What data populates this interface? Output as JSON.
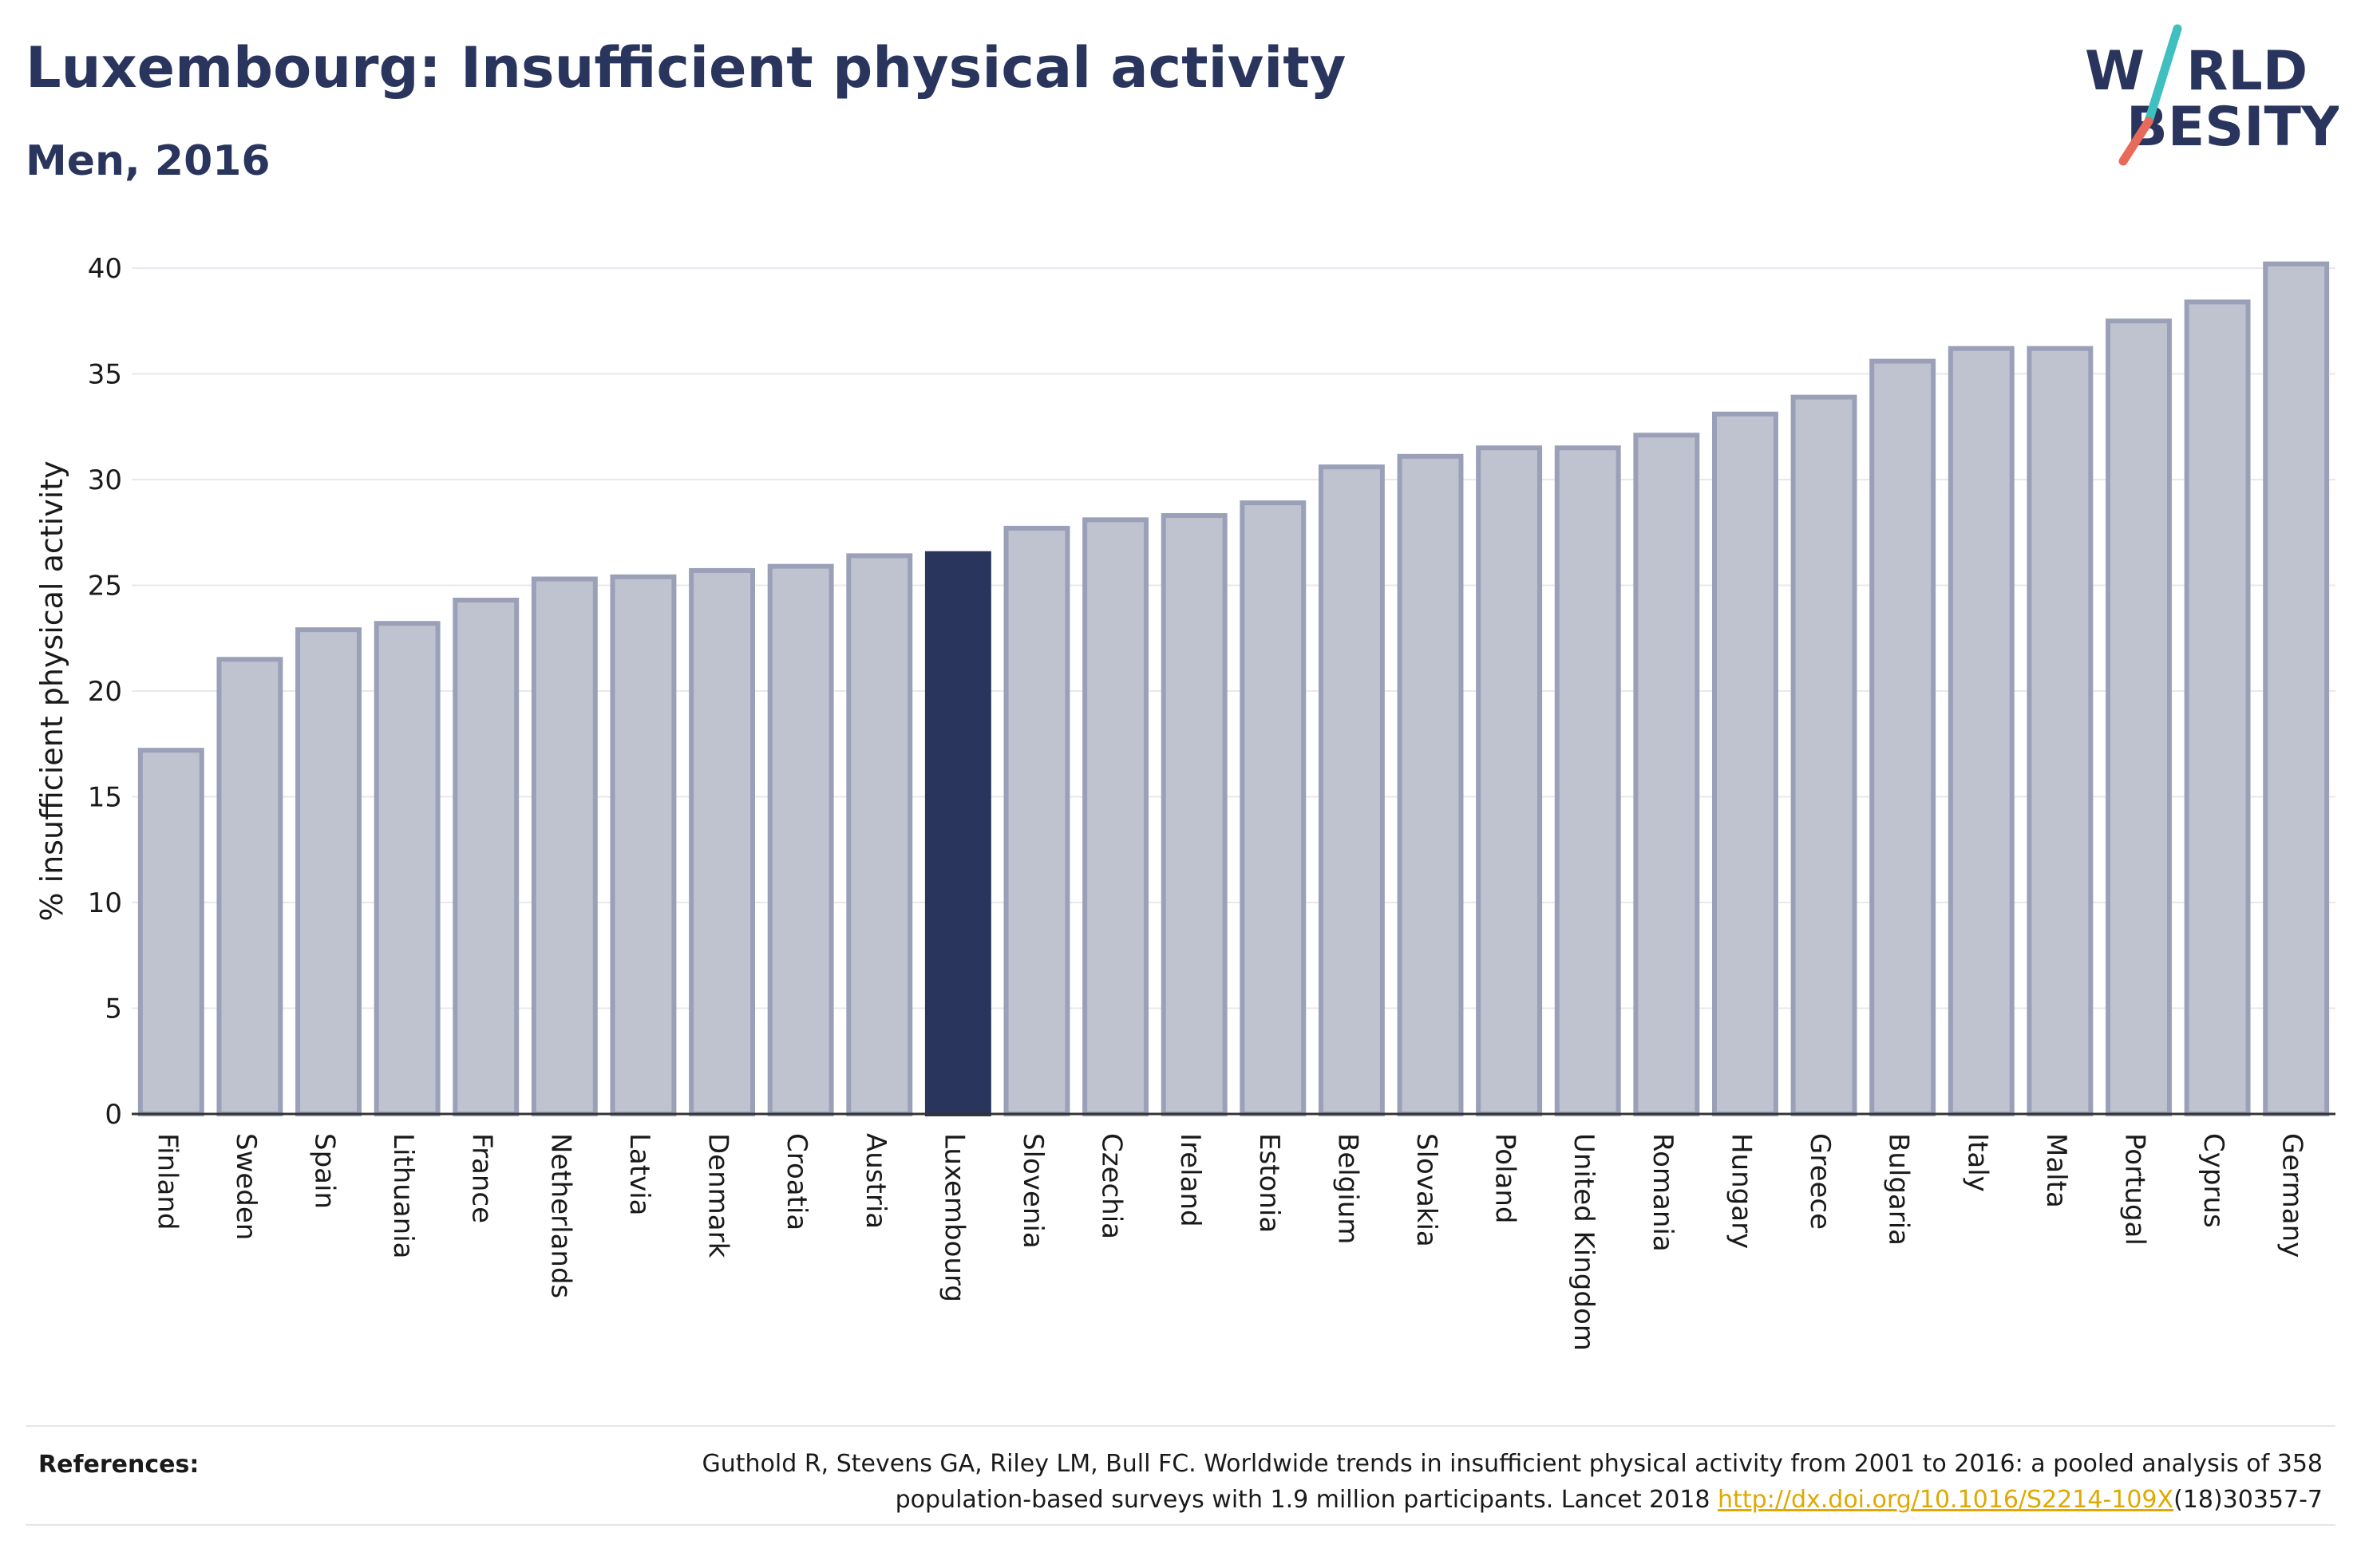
{
  "header": {
    "title": "Luxembourg: Insufficient physical activity",
    "subtitle": "Men, 2016"
  },
  "logo": {
    "line1_pre": "W",
    "line1_post": "RLD",
    "line2_pre": "",
    "line2_post": "BESITY",
    "colors": {
      "text": "#2a355e",
      "slash_top": "#3fbfbf",
      "slash_bottom": "#e86a5a"
    }
  },
  "chart_data": {
    "type": "bar",
    "title": "Luxembourg: Insufficient physical activity",
    "subtitle": "Men, 2016",
    "ylabel": "% insufficient physical activity",
    "xlabel": "",
    "ylim": [
      0,
      42
    ],
    "yticks": [
      0,
      5,
      10,
      15,
      20,
      25,
      30,
      35,
      40
    ],
    "grid": true,
    "highlight": "Luxembourg",
    "colors": {
      "bar": "#bfc2cf",
      "bar_edge": "#9aa0b8",
      "highlight": "#2a355e"
    },
    "categories": [
      "Finland",
      "Sweden",
      "Spain",
      "Lithuania",
      "France",
      "Netherlands",
      "Latvia",
      "Denmark",
      "Croatia",
      "Austria",
      "Luxembourg",
      "Slovenia",
      "Czechia",
      "Ireland",
      "Estonia",
      "Belgium",
      "Slovakia",
      "Poland",
      "United Kingdom",
      "Romania",
      "Hungary",
      "Greece",
      "Bulgaria",
      "Italy",
      "Malta",
      "Portugal",
      "Cyprus",
      "Germany"
    ],
    "values": [
      17.2,
      21.5,
      22.9,
      23.2,
      24.3,
      25.3,
      25.4,
      25.7,
      25.9,
      26.4,
      26.5,
      27.7,
      28.1,
      28.3,
      28.9,
      30.6,
      31.1,
      31.5,
      31.5,
      32.1,
      33.1,
      33.9,
      35.6,
      36.2,
      36.2,
      37.5,
      38.4,
      40.2
    ]
  },
  "references": {
    "label": "References:",
    "line1": "Guthold R, Stevens GA, Riley LM, Bull FC. Worldwide trends in insufficient physical activity from 2001 to 2016: a pooled analysis of 358",
    "line2_pre": "population-based surveys with 1.9 million participants. Lancet 2018 ",
    "link": "http://dx.doi.org/10.1016/S2214-109X",
    "line2_post": "(18)30357-7"
  }
}
